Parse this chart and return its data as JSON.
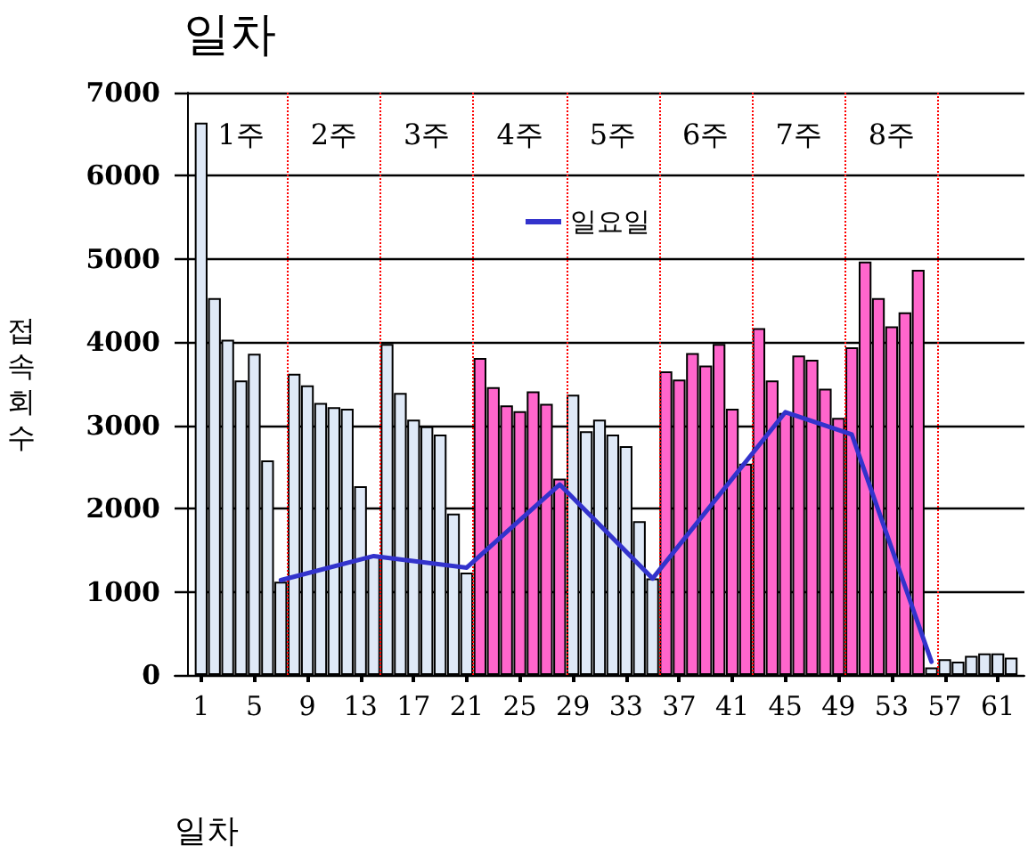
{
  "chart_data": {
    "type": "bar",
    "title": "일차",
    "xlabel": "일차",
    "ylabel": "접속회수",
    "x": [
      1,
      2,
      3,
      4,
      5,
      6,
      7,
      8,
      9,
      10,
      11,
      12,
      13,
      14,
      15,
      16,
      17,
      18,
      19,
      20,
      21,
      22,
      23,
      24,
      25,
      26,
      27,
      28,
      29,
      30,
      31,
      32,
      33,
      34,
      35,
      36,
      37,
      38,
      39,
      40,
      41,
      42,
      43,
      44,
      45,
      46,
      47,
      48,
      49,
      50,
      51,
      52,
      53,
      54,
      55,
      56,
      57,
      58,
      59,
      60,
      61,
      62
    ],
    "series": [
      {
        "values": [
          6640,
          4530,
          4030,
          3540,
          3860,
          2580,
          1120,
          3620,
          3480,
          3270,
          3220,
          3200,
          2270,
          1430,
          3980,
          3390,
          3070,
          2990,
          2890,
          1940,
          1230,
          3810,
          3460,
          3240,
          3170,
          3410,
          3260,
          2360,
          3370,
          2930,
          3070,
          2890,
          2750,
          1850,
          1160,
          3650,
          3550,
          3870,
          3720,
          3980,
          3200,
          2540,
          4170,
          3540,
          3150,
          3840,
          3790,
          3440,
          3090,
          3940,
          4970,
          4530,
          4190,
          4360,
          4870,
          90,
          190,
          160,
          230,
          260,
          260,
          210
        ],
        "colors": [
          "#dfe9f7",
          "#dfe9f7",
          "#dfe9f7",
          "#dfe9f7",
          "#dfe9f7",
          "#dfe9f7",
          "#dfe9f7",
          "#dfe9f7",
          "#dfe9f7",
          "#dfe9f7",
          "#dfe9f7",
          "#dfe9f7",
          "#dfe9f7",
          "#dfe9f7",
          "#dfe9f7",
          "#dfe9f7",
          "#dfe9f7",
          "#dfe9f7",
          "#dfe9f7",
          "#dfe9f7",
          "#dfe9f7",
          "#ff66cc",
          "#ff66cc",
          "#ff66cc",
          "#ff66cc",
          "#ff66cc",
          "#ff66cc",
          "#ff66cc",
          "#dfe9f7",
          "#dfe9f7",
          "#dfe9f7",
          "#dfe9f7",
          "#dfe9f7",
          "#dfe9f7",
          "#dfe9f7",
          "#ff66cc",
          "#ff66cc",
          "#ff66cc",
          "#ff66cc",
          "#ff66cc",
          "#ff66cc",
          "#ff66cc",
          "#ff66cc",
          "#ff66cc",
          "#ff66cc",
          "#ff66cc",
          "#ff66cc",
          "#ff66cc",
          "#ff66cc",
          "#ff66cc",
          "#ff66cc",
          "#ff66cc",
          "#ff66cc",
          "#ff66cc",
          "#ff66cc",
          "#dfe9f7",
          "#dfe9f7",
          "#dfe9f7",
          "#dfe9f7",
          "#dfe9f7",
          "#dfe9f7",
          "#dfe9f7"
        ]
      },
      {
        "type": "line",
        "name": "일요일",
        "color": "#3333cc",
        "marker": "none",
        "line_style": "solid",
        "x": [
          7,
          14,
          21,
          28,
          35,
          45,
          50,
          56
        ],
        "values": [
          1140,
          1430,
          1290,
          2290,
          1160,
          3160,
          2890,
          160
        ]
      }
    ],
    "xlim": [
      -1,
      63
    ],
    "xticks": [
      1,
      5,
      9,
      13,
      17,
      21,
      25,
      29,
      33,
      37,
      41,
      45,
      49,
      53,
      57,
      61
    ],
    "ylim": [
      0,
      7000
    ],
    "yticks": [
      0,
      1000,
      2000,
      3000,
      4000,
      5000,
      6000,
      7000
    ],
    "grid": "y",
    "legend": "top",
    "ref_lines": [
      {
        "axis": "x",
        "value": 7.5,
        "color": "#ff0000",
        "line_style": "dotted"
      },
      {
        "axis": "x",
        "value": 14.5,
        "color": "#ff0000",
        "line_style": "dotted"
      },
      {
        "axis": "x",
        "value": 21.5,
        "color": "#ff0000",
        "line_style": "dotted"
      },
      {
        "axis": "x",
        "value": 28.5,
        "color": "#ff0000",
        "line_style": "dotted"
      },
      {
        "axis": "x",
        "value": 35.5,
        "color": "#ff0000",
        "line_style": "dotted"
      },
      {
        "axis": "x",
        "value": 42.5,
        "color": "#ff0000",
        "line_style": "dotted"
      },
      {
        "axis": "x",
        "value": 49.5,
        "color": "#ff0000",
        "line_style": "dotted"
      },
      {
        "axis": "x",
        "value": 56.5,
        "color": "#ff0000",
        "line_style": "dotted"
      }
    ],
    "annotations": [
      {
        "text": "1주",
        "x": 4,
        "y": 6500
      },
      {
        "text": "2주",
        "x": 11,
        "y": 6500
      },
      {
        "text": "3주",
        "x": 18,
        "y": 6500
      },
      {
        "text": "4주",
        "x": 25,
        "y": 6500
      },
      {
        "text": "5주",
        "x": 32,
        "y": 6500
      },
      {
        "text": "6주",
        "x": 39,
        "y": 6500
      },
      {
        "text": "7주",
        "x": 46,
        "y": 6500
      },
      {
        "text": "8주",
        "x": 53,
        "y": 6500
      }
    ]
  }
}
